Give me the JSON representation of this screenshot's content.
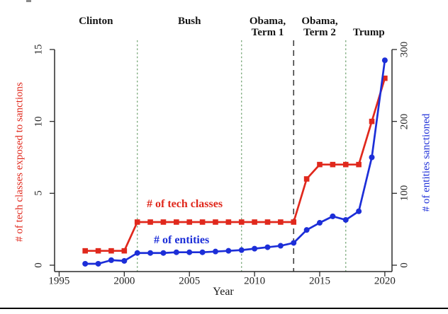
{
  "figure": {
    "xlabel": "Year"
  },
  "chart_data": {
    "type": "line",
    "title": "",
    "xlabel": "Year",
    "ylabel_left": "# of tech classes exposed to sanctions",
    "ylabel_right": "# of entities sanctioned",
    "x_range": [
      1994.65,
      2020.55
    ],
    "yleft_range": [
      0,
      15
    ],
    "yright_range": [
      0,
      300
    ],
    "x_ticks": [
      1995,
      2000,
      2005,
      2010,
      2015,
      2020
    ],
    "yleft_ticks": [
      0,
      5,
      10,
      15
    ],
    "yright_ticks": [
      0,
      100,
      200,
      300
    ],
    "grid": false,
    "legend_position": "inline-annotations",
    "x": [
      1997,
      1998,
      1999,
      2000,
      2001,
      2002,
      2003,
      2004,
      2005,
      2006,
      2007,
      2008,
      2009,
      2010,
      2011,
      2012,
      2013,
      2014,
      2015,
      2016,
      2017,
      2018,
      2019,
      2020
    ],
    "series": [
      {
        "name": "# of tech classes",
        "axis": "left",
        "color": "#e0281c",
        "marker": "square",
        "values": [
          1,
          1,
          1,
          1,
          3,
          3,
          3,
          3,
          3,
          3,
          3,
          3,
          3,
          3,
          3,
          3,
          3,
          6,
          7,
          7,
          7,
          7,
          10,
          13
        ]
      },
      {
        "name": "# of entities",
        "axis": "right",
        "color": "#1c2ed8",
        "marker": "circle",
        "values": [
          2,
          2,
          7,
          6,
          17,
          17,
          17,
          18,
          18,
          18,
          19,
          20,
          21,
          23,
          25,
          27,
          31,
          49,
          59,
          68,
          63,
          75,
          150,
          285
        ]
      }
    ],
    "era_dividers": [
      {
        "year": 2001,
        "style": "dotted",
        "color": "#79a879"
      },
      {
        "year": 2009,
        "style": "dotted",
        "color": "#79a879"
      },
      {
        "year": 2013,
        "style": "dashed",
        "color": "#3f3f3f"
      },
      {
        "year": 2017,
        "style": "dotted",
        "color": "#79a879"
      }
    ],
    "eras": [
      {
        "label_lines": [
          "Clinton"
        ]
      },
      {
        "label_lines": [
          "Bush"
        ]
      },
      {
        "label_lines": [
          "Obama,",
          "Term 1"
        ]
      },
      {
        "label_lines": [
          "Obama,",
          "Term 2"
        ]
      },
      {
        "label_lines": [
          "Trump"
        ]
      }
    ],
    "axis_color": "#2b2b2b",
    "tick_label_color": "#262626"
  }
}
